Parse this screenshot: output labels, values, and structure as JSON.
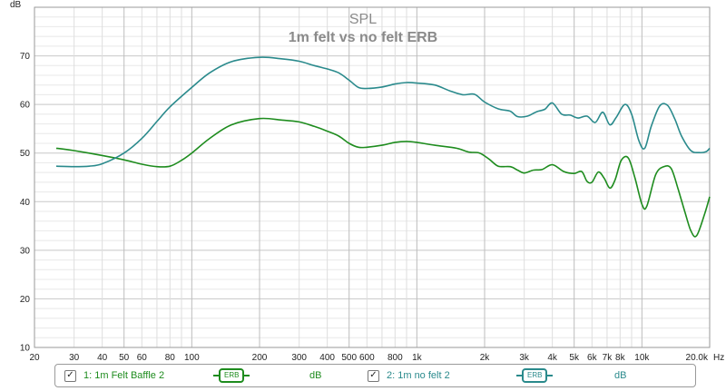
{
  "chart_data": {
    "type": "line",
    "title": "SPL",
    "subtitle": "1m felt vs no felt ERB",
    "ylabel": "dB",
    "xunit": "Hz",
    "xscale": "log",
    "xlim": [
      20,
      20000
    ],
    "ylim": [
      10,
      80
    ],
    "grid": true,
    "yticks": [
      10,
      20,
      30,
      40,
      50,
      60,
      70
    ],
    "xticks": [
      {
        "v": 20,
        "label": "20"
      },
      {
        "v": 30,
        "label": "30"
      },
      {
        "v": 40,
        "label": "40"
      },
      {
        "v": 50,
        "label": "50"
      },
      {
        "v": 60,
        "label": "60"
      },
      {
        "v": 80,
        "label": "80"
      },
      {
        "v": 100,
        "label": "100"
      },
      {
        "v": 200,
        "label": "200"
      },
      {
        "v": 300,
        "label": "300"
      },
      {
        "v": 400,
        "label": "400"
      },
      {
        "v": 500,
        "label": "500"
      },
      {
        "v": 600,
        "label": "600"
      },
      {
        "v": 800,
        "label": "800"
      },
      {
        "v": 1000,
        "label": "1k"
      },
      {
        "v": 2000,
        "label": "2k"
      },
      {
        "v": 3000,
        "label": "3k"
      },
      {
        "v": 4000,
        "label": "4k"
      },
      {
        "v": 5000,
        "label": "5k"
      },
      {
        "v": 6000,
        "label": "6k"
      },
      {
        "v": 7000,
        "label": "7k"
      },
      {
        "v": 8000,
        "label": "8k"
      },
      {
        "v": 10000,
        "label": "10k"
      },
      {
        "v": 20000,
        "label": "20.0k"
      }
    ],
    "series": [
      {
        "name": "1: 1m Felt Baffle 2",
        "color": "#1e8c1e",
        "points": [
          [
            25,
            51
          ],
          [
            30,
            50.5
          ],
          [
            40,
            49.5
          ],
          [
            50,
            48.6
          ],
          [
            60,
            47.7
          ],
          [
            70,
            47.2
          ],
          [
            80,
            47.3
          ],
          [
            90,
            48.5
          ],
          [
            100,
            50
          ],
          [
            120,
            53
          ],
          [
            150,
            55.8
          ],
          [
            200,
            57.1
          ],
          [
            250,
            56.8
          ],
          [
            300,
            56.4
          ],
          [
            350,
            55.5
          ],
          [
            400,
            54.5
          ],
          [
            450,
            53.5
          ],
          [
            500,
            52
          ],
          [
            550,
            51.2
          ],
          [
            600,
            51.2
          ],
          [
            700,
            51.6
          ],
          [
            800,
            52.2
          ],
          [
            900,
            52.4
          ],
          [
            1000,
            52.2
          ],
          [
            1200,
            51.6
          ],
          [
            1500,
            51
          ],
          [
            1700,
            50.2
          ],
          [
            1900,
            50
          ],
          [
            2100,
            48.7
          ],
          [
            2300,
            47.3
          ],
          [
            2600,
            47.2
          ],
          [
            2800,
            46.5
          ],
          [
            3000,
            45.9
          ],
          [
            3300,
            46.5
          ],
          [
            3600,
            46.6
          ],
          [
            4000,
            47.6
          ],
          [
            4500,
            46.2
          ],
          [
            5000,
            45.8
          ],
          [
            5400,
            46.2
          ],
          [
            5700,
            44.2
          ],
          [
            6000,
            44
          ],
          [
            6400,
            46.1
          ],
          [
            6800,
            44.8
          ],
          [
            7200,
            42.8
          ],
          [
            7600,
            44.5
          ],
          [
            8100,
            48.5
          ],
          [
            8700,
            49
          ],
          [
            9300,
            45
          ],
          [
            10000,
            39.5
          ],
          [
            10500,
            39
          ],
          [
            11500,
            45.5
          ],
          [
            12500,
            47.2
          ],
          [
            13500,
            46.8
          ],
          [
            14500,
            42.5
          ],
          [
            15500,
            38
          ],
          [
            16500,
            34
          ],
          [
            17500,
            33
          ],
          [
            19000,
            37.5
          ],
          [
            20000,
            41
          ]
        ]
      },
      {
        "name": "2: 1m no felt 2",
        "color": "#2a8a8c",
        "points": [
          [
            25,
            47.3
          ],
          [
            30,
            47.2
          ],
          [
            35,
            47.3
          ],
          [
            40,
            47.8
          ],
          [
            50,
            50
          ],
          [
            60,
            53
          ],
          [
            70,
            56.5
          ],
          [
            80,
            59.5
          ],
          [
            100,
            63.5
          ],
          [
            120,
            66.5
          ],
          [
            150,
            68.8
          ],
          [
            200,
            69.7
          ],
          [
            250,
            69.4
          ],
          [
            300,
            68.9
          ],
          [
            350,
            68
          ],
          [
            400,
            67.3
          ],
          [
            450,
            66.5
          ],
          [
            500,
            65
          ],
          [
            550,
            63.5
          ],
          [
            600,
            63.3
          ],
          [
            700,
            63.6
          ],
          [
            800,
            64.2
          ],
          [
            900,
            64.5
          ],
          [
            1000,
            64.4
          ],
          [
            1200,
            64
          ],
          [
            1400,
            62.8
          ],
          [
            1600,
            62
          ],
          [
            1800,
            62.1
          ],
          [
            2000,
            60.5
          ],
          [
            2300,
            59.1
          ],
          [
            2600,
            58.6
          ],
          [
            2800,
            57.5
          ],
          [
            3100,
            57.6
          ],
          [
            3400,
            58.5
          ],
          [
            3700,
            59
          ],
          [
            4000,
            60.3
          ],
          [
            4400,
            58
          ],
          [
            4800,
            57.8
          ],
          [
            5200,
            57.2
          ],
          [
            5700,
            57.6
          ],
          [
            6200,
            56.3
          ],
          [
            6700,
            58.4
          ],
          [
            7200,
            55.8
          ],
          [
            7700,
            57.4
          ],
          [
            8400,
            60
          ],
          [
            9000,
            58
          ],
          [
            9700,
            52.5
          ],
          [
            10300,
            51
          ],
          [
            11000,
            55.5
          ],
          [
            12000,
            59.7
          ],
          [
            13000,
            59.8
          ],
          [
            14000,
            57
          ],
          [
            15000,
            53.5
          ],
          [
            16500,
            50.5
          ],
          [
            18000,
            50.1
          ],
          [
            19300,
            50.3
          ],
          [
            20000,
            51
          ]
        ]
      }
    ]
  },
  "legend": {
    "items": [
      {
        "label": "1: 1m Felt Baffle 2",
        "check": "✓",
        "smoothing": "ERB",
        "unit": "dB",
        "color": "#1e8c1e"
      },
      {
        "label": "2: 1m no felt 2",
        "check": "✓",
        "smoothing": "ERB",
        "unit": "dB",
        "color": "#2a8a8c"
      }
    ]
  }
}
